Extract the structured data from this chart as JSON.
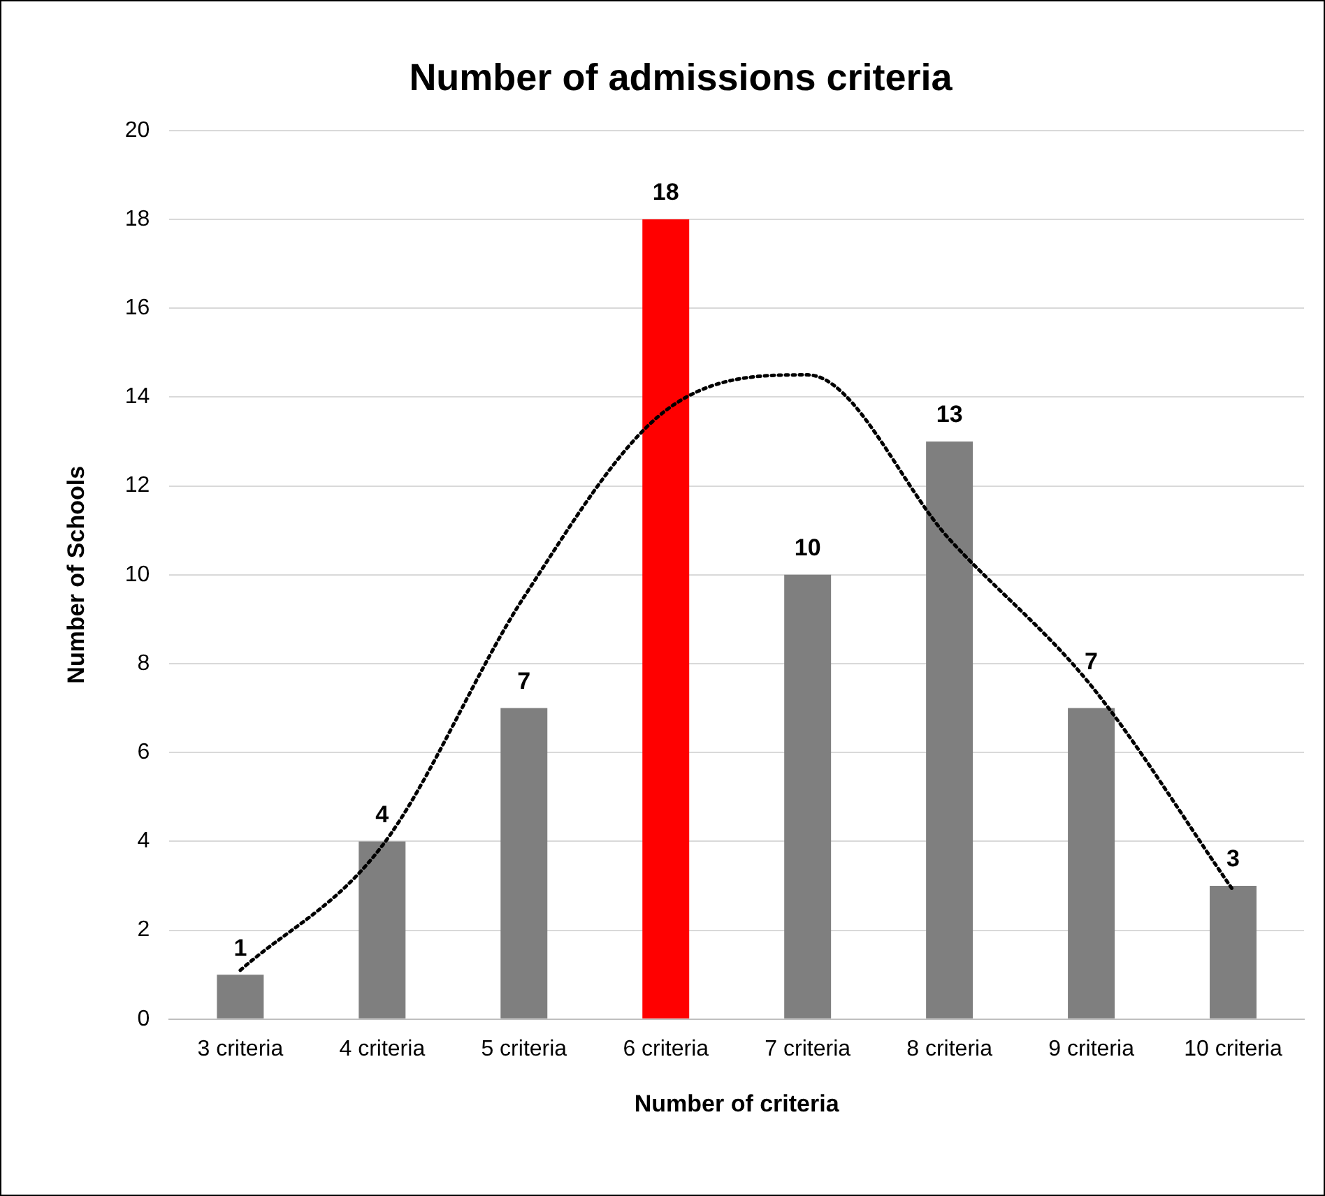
{
  "chart_data": {
    "type": "bar",
    "title": "Number of admissions criteria",
    "xlabel": "Number of criteria",
    "ylabel": "Number of Schools",
    "categories": [
      "3 criteria",
      "4 criteria",
      "5 criteria",
      "6 criteria",
      "7 criteria",
      "8 criteria",
      "9 criteria",
      "10 criteria"
    ],
    "series": [
      {
        "colors": [
          "#7f7f7f",
          "#7f7f7f",
          "#7f7f7f",
          "#ff0000",
          "#7f7f7f",
          "#7f7f7f",
          "#7f7f7f",
          "#7f7f7f"
        ],
        "values": [
          1,
          4,
          7,
          18,
          10,
          13,
          7,
          3
        ],
        "value_labels": [
          "1",
          "4",
          "7",
          "18",
          "10",
          "13",
          "7",
          "3"
        ]
      },
      {
        "type": "line",
        "color": "#000000",
        "line_style": "dotted",
        "marker": "none",
        "values": [
          1.1,
          3.9,
          9.5,
          13.7,
          14.5,
          10.8,
          7.5,
          2.9
        ]
      }
    ],
    "ylim": [
      0,
      20
    ],
    "yticks": [
      0,
      2,
      4,
      6,
      8,
      10,
      12,
      14,
      16,
      18,
      20
    ],
    "grid": "y",
    "legend": false
  }
}
